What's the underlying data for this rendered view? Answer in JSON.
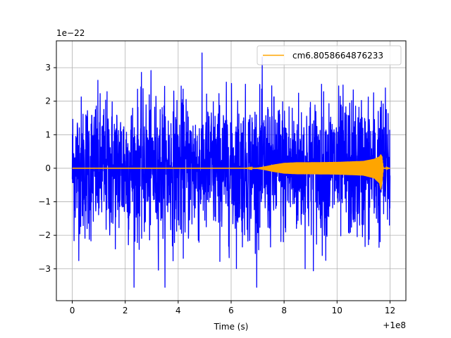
{
  "chart_data": {
    "type": "line",
    "title": "",
    "xlabel": "Time (s)",
    "ylabel": "",
    "x_offset_label": "+1e8",
    "y_scale_label": "1e−22",
    "xlim": [
      -0.6,
      12.6
    ],
    "ylim": [
      -3.95,
      3.8
    ],
    "x_ticks": [
      0,
      2,
      4,
      6,
      8,
      10,
      12
    ],
    "x_tick_labels": [
      "0",
      "2",
      "4",
      "6",
      "8",
      "10",
      "12"
    ],
    "y_ticks": [
      -3,
      -2,
      -1,
      0,
      1,
      2,
      3
    ],
    "y_tick_labels": [
      "−3",
      "−2",
      "−1",
      "0",
      "1",
      "2",
      "3"
    ],
    "grid": true,
    "legend_position": "top-right",
    "series": [
      {
        "name": "",
        "color": "#0000ff",
        "kind": "noise",
        "x_range": [
          0,
          12.0
        ],
        "typical_envelope": [
          -1.75,
          2.05
        ],
        "max": 3.45,
        "min": -3.55
      },
      {
        "name": "cm6.8058664876233",
        "color": "#ffa500",
        "kind": "chirp",
        "x": [
          0,
          6.5,
          7.0,
          7.3,
          7.6,
          8.0,
          8.5,
          9.0,
          10.0,
          11.0,
          11.4,
          11.6,
          11.65,
          11.7,
          11.75,
          12.0
        ],
        "upper": [
          0.0,
          0.0,
          0.02,
          0.06,
          0.11,
          0.16,
          0.18,
          0.18,
          0.19,
          0.22,
          0.28,
          0.35,
          0.42,
          0.35,
          0.02,
          0.0
        ],
        "lower": [
          0.0,
          0.0,
          -0.02,
          -0.06,
          -0.11,
          -0.16,
          -0.18,
          -0.18,
          -0.19,
          -0.22,
          -0.3,
          -0.45,
          -0.65,
          -0.45,
          -0.02,
          0.0
        ]
      }
    ]
  }
}
